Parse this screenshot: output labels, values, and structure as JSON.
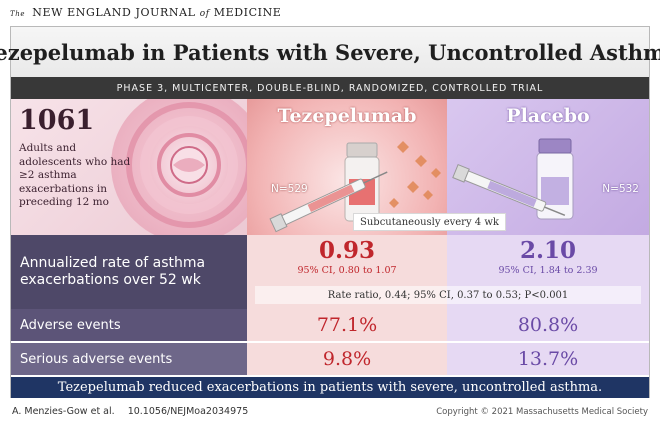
{
  "journal": {
    "prefix": "The",
    "name_part1": "NEW ENGLAND JOURNAL",
    "name_of": "of",
    "name_part2": "MEDICINE"
  },
  "title": "Tezepelumab in Patients with Severe, Uncontrolled Asthma",
  "trial_design": "PHASE 3, MULTICENTER, DOUBLE-BLIND, RANDOMIZED, CONTROLLED TRIAL",
  "population": {
    "count": "1061",
    "description": "Adults and adolescents who had ≥2 asthma exacerbations in preceding 12 mo"
  },
  "arms": {
    "tezepelumab": {
      "name": "Tezepelumab",
      "n": "N=529"
    },
    "placebo": {
      "name": "Placebo",
      "n": "N=532"
    }
  },
  "administration": "Subcutaneously every 4 wk",
  "results": {
    "exacerbation": {
      "label": "Annualized rate of asthma exacerbations over 52 wk",
      "tezepelumab_value": "0.93",
      "tezepelumab_ci": "95% CI, 0.80 to 1.07",
      "placebo_value": "2.10",
      "placebo_ci": "95% CI, 1.84 to 2.39",
      "rate_ratio": "Rate ratio, 0.44; 95% CI, 0.37 to 0.53; P<0.001"
    },
    "adverse": {
      "label": "Adverse events",
      "tezepelumab_value": "77.1%",
      "placebo_value": "80.8%"
    },
    "serious_adverse": {
      "label": "Serious adverse events",
      "tezepelumab_value": "9.8%",
      "placebo_value": "13.7%"
    }
  },
  "conclusion": "Tezepelumab reduced exacerbations in patients with severe, uncontrolled asthma.",
  "footer": {
    "authors": "A. Menzies-Gow et al.",
    "doi": "10.1056/NEJMoa2034975",
    "copyright": "Copyright © 2021 Massachusetts Medical Society"
  },
  "colors": {
    "tezepelumab_accent": "#c0262c",
    "placebo_accent": "#6a4aa6",
    "conclusion_bar": "#1f3564",
    "label_column": "#4e4868"
  }
}
